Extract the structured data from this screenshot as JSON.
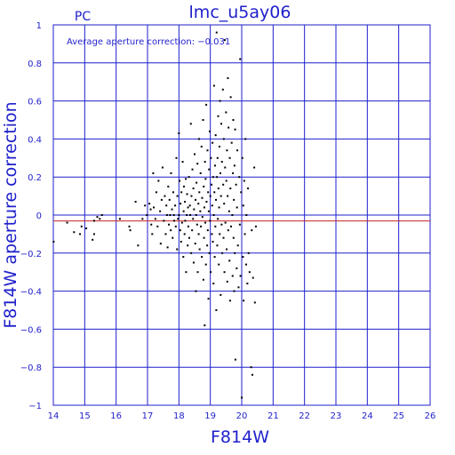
{
  "chart_data": {
    "type": "scatter",
    "title": "lmc_u5ay06",
    "panel_label": "PC",
    "annotation": "Average aperture correction: −0.031",
    "xlabel": "F814W",
    "ylabel": "F814W aperture correction",
    "xlim": [
      14,
      26
    ],
    "ylim": [
      -1,
      1
    ],
    "x_ticks": [
      14,
      15,
      16,
      17,
      18,
      19,
      20,
      21,
      22,
      23,
      24,
      25,
      26
    ],
    "y_ticks": [
      -1,
      -0.8,
      -0.6,
      -0.4,
      -0.2,
      0,
      0.2,
      0.4,
      0.6,
      0.8,
      1
    ],
    "y_tick_labels": [
      "−1",
      "−0.8",
      "−0.6",
      "−0.4",
      "−0.2",
      "0",
      "0.2",
      "0.4",
      "0.6",
      "0.8",
      "1"
    ],
    "grid": true,
    "reference_line": 0,
    "average_line": -0.031,
    "colors": {
      "axes": "#1f1fcc",
      "grid": "#1f1fcc",
      "average": "#cc2222",
      "points": "#000000",
      "title": "#1f1fcc"
    },
    "points": [
      [
        14.01,
        -0.14
      ],
      [
        14.44,
        -0.04
      ],
      [
        14.66,
        -0.09
      ],
      [
        14.85,
        -0.1
      ],
      [
        14.9,
        -0.06
      ],
      [
        15.05,
        -0.07
      ],
      [
        15.25,
        -0.13
      ],
      [
        15.3,
        -0.1
      ],
      [
        15.3,
        -0.03
      ],
      [
        15.4,
        -0.01
      ],
      [
        15.55,
        0.0
      ],
      [
        15.48,
        -0.02
      ],
      [
        16.12,
        -0.02
      ],
      [
        16.42,
        -0.06
      ],
      [
        16.45,
        -0.08
      ],
      [
        16.62,
        0.07
      ],
      [
        16.7,
        -0.16
      ],
      [
        16.84,
        -0.02
      ],
      [
        16.92,
        0.05
      ],
      [
        16.98,
        0.0
      ],
      [
        17.06,
        0.06
      ],
      [
        17.1,
        0.03
      ],
      [
        17.12,
        -0.05
      ],
      [
        17.15,
        -0.1
      ],
      [
        17.18,
        0.22
      ],
      [
        17.2,
        0.04
      ],
      [
        17.25,
        -0.02
      ],
      [
        17.28,
        0.12
      ],
      [
        17.32,
        -0.06
      ],
      [
        17.35,
        0.18
      ],
      [
        17.4,
        0.02
      ],
      [
        17.42,
        -0.15
      ],
      [
        17.45,
        0.08
      ],
      [
        17.48,
        0.25
      ],
      [
        17.52,
        -0.03
      ],
      [
        17.55,
        0.1
      ],
      [
        17.58,
        -0.1
      ],
      [
        17.6,
        0.05
      ],
      [
        17.62,
        0.0
      ],
      [
        17.64,
        -0.17
      ],
      [
        17.66,
        0.15
      ],
      [
        17.68,
        -0.05
      ],
      [
        17.7,
        0.08
      ],
      [
        17.72,
        0.0
      ],
      [
        17.74,
        -0.08
      ],
      [
        17.75,
        0.22
      ],
      [
        17.78,
        0.03
      ],
      [
        17.8,
        -0.12
      ],
      [
        17.82,
        0.12
      ],
      [
        17.84,
        0.0
      ],
      [
        17.85,
        -0.03
      ],
      [
        17.88,
        0.05
      ],
      [
        17.9,
        -0.06
      ],
      [
        17.92,
        0.3
      ],
      [
        17.94,
        -0.18
      ],
      [
        17.95,
        0.1
      ],
      [
        17.97,
        -0.02
      ],
      [
        18.0,
        0.43
      ],
      [
        18.0,
        0.0
      ],
      [
        18.02,
        0.18
      ],
      [
        18.04,
        -0.08
      ],
      [
        18.05,
        0.06
      ],
      [
        18.07,
        -0.14
      ],
      [
        18.08,
        0.12
      ],
      [
        18.1,
        -0.04
      ],
      [
        18.12,
        0.28
      ],
      [
        18.14,
        -0.22
      ],
      [
        18.15,
        0.02
      ],
      [
        18.16,
        0.15
      ],
      [
        18.18,
        -0.1
      ],
      [
        18.19,
        0.07
      ],
      [
        18.2,
        -0.03
      ],
      [
        18.22,
        0.19
      ],
      [
        18.23,
        -0.3
      ],
      [
        18.25,
        0.0
      ],
      [
        18.26,
        0.11
      ],
      [
        18.28,
        -0.16
      ],
      [
        18.29,
        0.04
      ],
      [
        18.3,
        -0.06
      ],
      [
        18.32,
        0.2
      ],
      [
        18.33,
        -0.12
      ],
      [
        18.35,
        0.05
      ],
      [
        18.36,
        0.0
      ],
      [
        18.38,
        0.48
      ],
      [
        18.39,
        -0.2
      ],
      [
        18.4,
        0.1
      ],
      [
        18.42,
        -0.08
      ],
      [
        18.43,
        0.24
      ],
      [
        18.45,
        -0.02
      ],
      [
        18.46,
        0.14
      ],
      [
        18.47,
        -0.25
      ],
      [
        18.48,
        0.03
      ],
      [
        18.5,
        0.32
      ],
      [
        18.52,
        -0.15
      ],
      [
        18.53,
        0.08
      ],
      [
        18.54,
        -0.4
      ],
      [
        18.55,
        0.0
      ],
      [
        18.56,
        0.17
      ],
      [
        18.58,
        -0.05
      ],
      [
        18.59,
        0.27
      ],
      [
        18.6,
        -0.3
      ],
      [
        18.62,
        0.06
      ],
      [
        18.63,
        -0.1
      ],
      [
        18.64,
        0.4
      ],
      [
        18.65,
        0.12
      ],
      [
        18.66,
        -0.18
      ],
      [
        18.68,
        0.02
      ],
      [
        18.69,
        0.22
      ],
      [
        18.7,
        -0.06
      ],
      [
        18.72,
        0.36
      ],
      [
        18.73,
        -0.22
      ],
      [
        18.74,
        0.09
      ],
      [
        18.75,
        -0.01
      ],
      [
        18.77,
        0.5
      ],
      [
        18.78,
        -0.34
      ],
      [
        18.79,
        0.15
      ],
      [
        18.8,
        -0.12
      ],
      [
        18.81,
        0.04
      ],
      [
        18.82,
        -0.58
      ],
      [
        18.83,
        0.28
      ],
      [
        18.84,
        -0.04
      ],
      [
        18.85,
        0.19
      ],
      [
        18.86,
        -0.26
      ],
      [
        18.87,
        0.58
      ],
      [
        18.88,
        0.07
      ],
      [
        18.9,
        -0.16
      ],
      [
        18.91,
        0.34
      ],
      [
        18.92,
        -0.08
      ],
      [
        18.93,
        0.12
      ],
      [
        18.94,
        -0.44
      ],
      [
        18.95,
        0.02
      ],
      [
        18.96,
        0.24
      ],
      [
        18.97,
        -0.2
      ],
      [
        18.98,
        0.44
      ],
      [
        18.99,
        -0.03
      ],
      [
        19.0,
        0.1
      ],
      [
        19.01,
        -0.3
      ],
      [
        19.02,
        0.3
      ],
      [
        19.04,
        0.16
      ],
      [
        19.05,
        -0.1
      ],
      [
        19.06,
        0.05
      ],
      [
        19.07,
        0.38
      ],
      [
        19.08,
        -0.14
      ],
      [
        19.09,
        0.2
      ],
      [
        19.1,
        -0.36
      ],
      [
        19.11,
        0.0
      ],
      [
        19.12,
        0.68
      ],
      [
        19.13,
        0.12
      ],
      [
        19.14,
        -0.22
      ],
      [
        19.15,
        0.26
      ],
      [
        19.16,
        -0.06
      ],
      [
        19.17,
        0.42
      ],
      [
        19.18,
        0.08
      ],
      [
        19.19,
        -0.5
      ],
      [
        19.2,
        0.96
      ],
      [
        19.21,
        0.2
      ],
      [
        19.22,
        -0.16
      ],
      [
        19.23,
        0.3
      ],
      [
        19.24,
        -0.02
      ],
      [
        19.25,
        0.52
      ],
      [
        19.26,
        0.14
      ],
      [
        19.27,
        -0.26
      ],
      [
        19.28,
        0.04
      ],
      [
        19.29,
        0.36
      ],
      [
        19.3,
        -0.1
      ],
      [
        19.31,
        0.6
      ],
      [
        19.32,
        0.22
      ],
      [
        19.33,
        -0.42
      ],
      [
        19.34,
        0.1
      ],
      [
        19.35,
        0.48
      ],
      [
        19.36,
        -0.05
      ],
      [
        19.37,
        0.28
      ],
      [
        19.38,
        -0.2
      ],
      [
        19.4,
        0.66
      ],
      [
        19.41,
        0.16
      ],
      [
        19.42,
        -0.12
      ],
      [
        19.43,
        0.4
      ],
      [
        19.44,
        0.06
      ],
      [
        19.45,
        -0.3
      ],
      [
        19.46,
        0.92
      ],
      [
        19.47,
        0.25
      ],
      [
        19.48,
        -0.04
      ],
      [
        19.5,
        0.54
      ],
      [
        19.51,
        0.18
      ],
      [
        19.52,
        -0.18
      ],
      [
        19.53,
        0.34
      ],
      [
        19.54,
        -0.35
      ],
      [
        19.55,
        0.1
      ],
      [
        19.56,
        0.72
      ],
      [
        19.57,
        -0.08
      ],
      [
        19.58,
        0.46
      ],
      [
        19.6,
        0.02
      ],
      [
        19.61,
        -0.24
      ],
      [
        19.62,
        0.3
      ],
      [
        19.63,
        -0.45
      ],
      [
        19.64,
        0.14
      ],
      [
        19.65,
        0.62
      ],
      [
        19.66,
        -0.06
      ],
      [
        19.68,
        0.38
      ],
      [
        19.7,
        0.0
      ],
      [
        19.71,
        -0.32
      ],
      [
        19.72,
        0.22
      ],
      [
        19.73,
        0.5
      ],
      [
        19.74,
        -0.12
      ],
      [
        19.75,
        0.08
      ],
      [
        19.76,
        -0.4
      ],
      [
        19.77,
        0.26
      ],
      [
        19.78,
        -0.2
      ],
      [
        19.79,
        0.45
      ],
      [
        19.8,
        -0.76
      ],
      [
        19.82,
        0.16
      ],
      [
        19.84,
        -0.28
      ],
      [
        19.85,
        0.04
      ],
      [
        19.86,
        0.34
      ],
      [
        19.88,
        -0.16
      ],
      [
        19.9,
        -0.38
      ],
      [
        19.92,
        0.2
      ],
      [
        19.94,
        -0.05
      ],
      [
        19.95,
        0.82
      ],
      [
        19.96,
        -0.32
      ],
      [
        19.98,
        0.12
      ],
      [
        20.0,
        -0.96
      ],
      [
        20.02,
        0.3
      ],
      [
        20.04,
        -0.22
      ],
      [
        20.05,
        0.05
      ],
      [
        20.06,
        -0.45
      ],
      [
        20.08,
        0.18
      ],
      [
        20.1,
        -0.1
      ],
      [
        20.12,
        0.4
      ],
      [
        20.14,
        -0.26
      ],
      [
        20.15,
        0.0
      ],
      [
        20.18,
        -0.36
      ],
      [
        20.2,
        0.14
      ],
      [
        20.22,
        -0.2
      ],
      [
        20.25,
        -0.3
      ],
      [
        20.3,
        -0.8
      ],
      [
        20.32,
        -0.08
      ],
      [
        20.34,
        -0.84
      ],
      [
        20.36,
        -0.33
      ],
      [
        20.4,
        0.25
      ],
      [
        20.42,
        -0.46
      ],
      [
        20.45,
        -0.06
      ]
    ]
  }
}
